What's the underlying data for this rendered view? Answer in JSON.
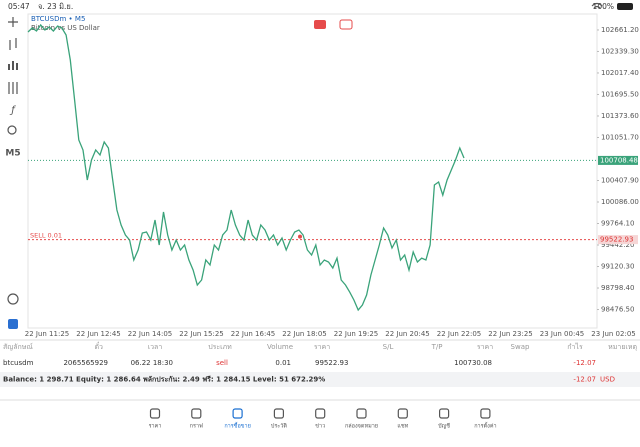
{
  "status_bar": {
    "time": "05:47",
    "date": "จ. 23 มิ.ย.",
    "battery": "100%"
  },
  "toolbar": {
    "timeframe": "M5"
  },
  "chart": {
    "type": "line",
    "symbol": "BTCUSDm • M5",
    "description": "Bitcoin vs US Dollar",
    "color": "#3aa37a",
    "ylim": [
      98200,
      102900
    ],
    "yticks": [
      {
        "value": 102661.2,
        "label": "102661.20"
      },
      {
        "value": 102339.3,
        "label": "102339.30"
      },
      {
        "value": 102017.4,
        "label": "102017.40"
      },
      {
        "value": 101695.5,
        "label": "101695.50"
      },
      {
        "value": 101373.6,
        "label": "101373.60"
      },
      {
        "value": 101051.7,
        "label": "101051.70"
      },
      {
        "value": 100407.9,
        "label": "100407.90"
      },
      {
        "value": 100086.0,
        "label": "100086.00"
      },
      {
        "value": 99764.1,
        "label": "99764.10"
      },
      {
        "value": 99442.2,
        "label": "99442.20"
      },
      {
        "value": 99120.3,
        "label": "99120.30"
      },
      {
        "value": 98798.4,
        "label": "98798.40"
      },
      {
        "value": 98476.5,
        "label": "98476.50"
      }
    ],
    "x_labels": [
      "22 Jun 11:25",
      "22 Jun 12:45",
      "22 Jun 14:05",
      "22 Jun 15:25",
      "22 Jun 16:45",
      "22 Jun 18:05",
      "22 Jun 19:25",
      "22 Jun 20:45",
      "22 Jun 22:05",
      "22 Jun 23:25",
      "23 Jun 00:45",
      "23 Jun 02:05"
    ],
    "current_price": {
      "value": 100708.48,
      "label": "100708.48"
    },
    "sell_line": {
      "label": "SELL 0.01",
      "price": {
        "value": 99522.93,
        "label": "99522.93"
      }
    },
    "values": [
      102631,
      102690,
      102646,
      102735,
      102660,
      102705,
      102646,
      102720,
      102690,
      102586,
      102211,
      101613,
      101014,
      100864,
      100415,
      100714,
      100864,
      100789,
      100984,
      100894,
      100415,
      99966,
      99741,
      99592,
      99517,
      99218,
      99367,
      99622,
      99637,
      99517,
      99816,
      99442,
      99936,
      99592,
      99367,
      99517,
      99367,
      99442,
      99218,
      99068,
      98843,
      98918,
      99218,
      99143,
      99442,
      99367,
      99592,
      99667,
      99966,
      99741,
      99592,
      99517,
      99816,
      99592,
      99517,
      99741,
      99667,
      99517,
      99592,
      99442,
      99547,
      99367,
      99517,
      99637,
      99667,
      99592,
      99367,
      99292,
      99442,
      99143,
      99218,
      99188,
      99098,
      99247,
      98918,
      98843,
      98738,
      98619,
      98469,
      98544,
      98694,
      98993,
      99218,
      99442,
      99697,
      99592,
      99397,
      99517,
      99218,
      99292,
      99068,
      99337,
      99188,
      99247,
      99218,
      99442,
      100340,
      100385,
      100190,
      100415,
      100565,
      100714,
      100894,
      100744
    ]
  },
  "table": {
    "headers": [
      "สัญลักษณ์",
      "ตั๋ว",
      "เวลา",
      "ประเภท",
      "Volume",
      "ราคา",
      "S/L",
      "T/P",
      "ราคา",
      "Swap",
      "กำไร",
      "หมายเหตุ"
    ],
    "row": {
      "symbol": "btcusdm",
      "ticket": "2065565929",
      "time": "06.22 18:30",
      "type": "sell",
      "volume": "0.01",
      "price": "99522.93",
      "current": "100730.08",
      "profit": "-12.07"
    }
  },
  "summary": {
    "text": "Balance: 1 298.71 Equity: 1 286.64 พลักประกัน: 2.49 ฟรี: 1 284.15 Level: 51 672.29%",
    "profit": "-12.07",
    "currency": "USD"
  },
  "nav": [
    "ราคา",
    "กราฟ",
    "การซื้อขาย",
    "ประวัติ",
    "ข่าว",
    "กล่องจดหมาย",
    "แชท",
    "บัญชี",
    "การตั้งค่า"
  ],
  "nav_active": 2
}
